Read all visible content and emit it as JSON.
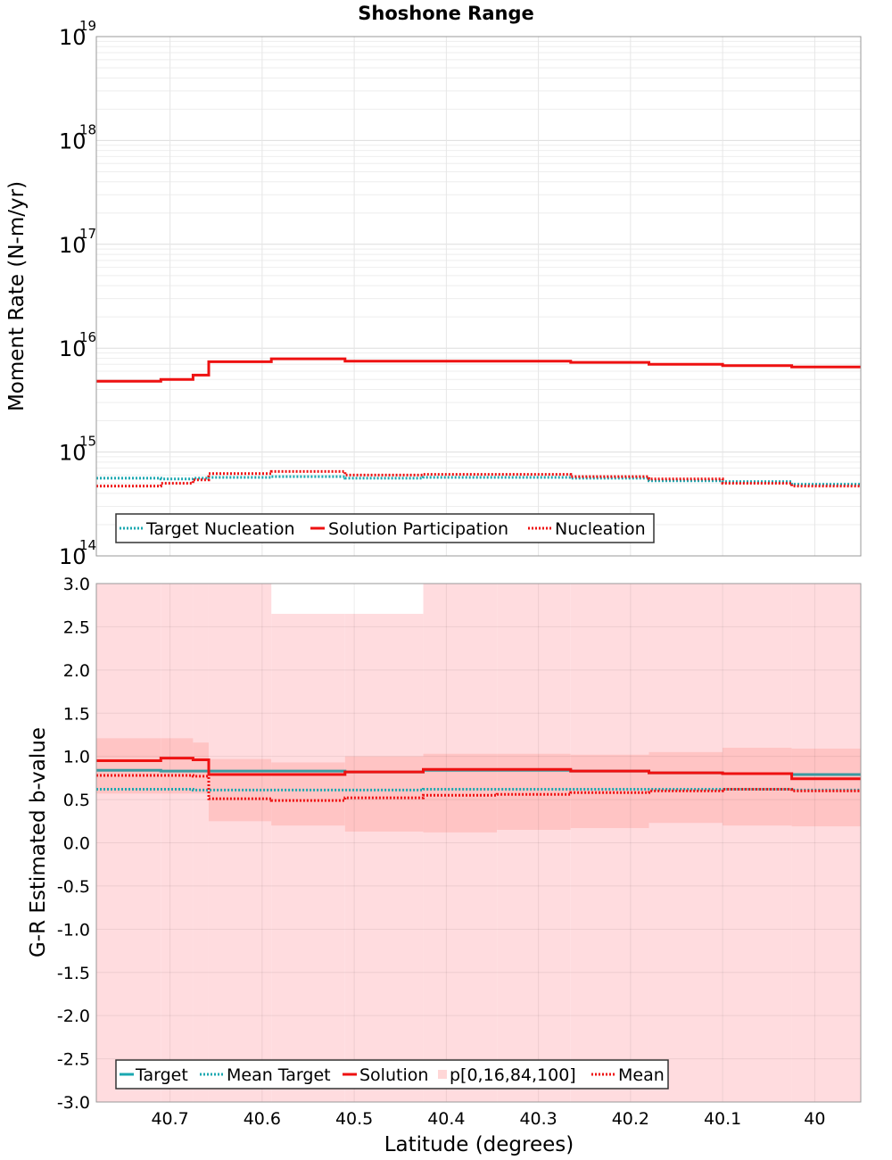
{
  "chart_data": [
    {
      "type": "line",
      "title": "Shoshone Range",
      "xlabel": "Latitude (degrees)",
      "ylabel": "Moment Rate (N-m/yr)",
      "yscale": "log",
      "ylim": [
        100000000000000.0,
        1e+19
      ],
      "xlim": [
        40.78,
        39.95
      ],
      "x_reversed": true,
      "grid": true,
      "legend_position": "bottom-left",
      "y_ticks": [
        {
          "base": "10",
          "exp": "14",
          "value": 100000000000000.0
        },
        {
          "base": "10",
          "exp": "15",
          "value": 1000000000000000.0
        },
        {
          "base": "10",
          "exp": "16",
          "value": 1e+16
        },
        {
          "base": "10",
          "exp": "17",
          "value": 1e+17
        },
        {
          "base": "10",
          "exp": "18",
          "value": 1e+18
        },
        {
          "base": "10",
          "exp": "19",
          "value": 1e+19
        }
      ],
      "bin_edges": [
        40.78,
        40.71,
        40.675,
        40.658,
        40.59,
        40.51,
        40.425,
        40.345,
        40.265,
        40.18,
        40.1,
        40.025,
        39.95
      ],
      "series": [
        {
          "name": "Target Nucleation",
          "style": "dotted",
          "color": "#1aa8b0",
          "values": [
            560000000000000.0,
            550000000000000.0,
            560000000000000.0,
            570000000000000.0,
            580000000000000.0,
            560000000000000.0,
            570000000000000.0,
            570000000000000.0,
            560000000000000.0,
            530000000000000.0,
            520000000000000.0,
            490000000000000.0
          ]
        },
        {
          "name": "Solution Participation",
          "style": "solid",
          "color": "#ee1111",
          "values": [
            4800000000000000.0,
            5000000000000000.0,
            5500000000000000.0,
            7400000000000000.0,
            7900000000000000.0,
            7500000000000000.0,
            7500000000000000.0,
            7500000000000000.0,
            7300000000000000.0,
            7000000000000000.0,
            6800000000000000.0,
            6600000000000000.0
          ]
        },
        {
          "name": "Nucleation",
          "style": "dotted",
          "color": "#ee1111",
          "values": [
            470000000000000.0,
            500000000000000.0,
            540000000000000.0,
            620000000000000.0,
            650000000000000.0,
            600000000000000.0,
            610000000000000.0,
            610000000000000.0,
            580000000000000.0,
            550000000000000.0,
            500000000000000.0,
            470000000000000.0
          ]
        }
      ]
    },
    {
      "type": "line",
      "title": "",
      "xlabel": "Latitude (degrees)",
      "ylabel": "G-R Estimated b-value",
      "ylim": [
        -3.0,
        3.0
      ],
      "xlim": [
        40.78,
        39.95
      ],
      "x_reversed": true,
      "grid": true,
      "legend_position": "bottom-left",
      "x_tick_values": [
        40.7,
        40.6,
        40.5,
        40.4,
        40.3,
        40.2,
        40.1,
        40.0
      ],
      "x_tick_labels": [
        "40.7",
        "40.6",
        "40.5",
        "40.4",
        "40.3",
        "40.2",
        "40.1",
        "40"
      ],
      "y_tick_values": [
        3.0,
        2.5,
        2.0,
        1.5,
        1.0,
        0.5,
        0.0,
        -0.5,
        -1.0,
        -1.5,
        -2.0,
        -2.5,
        -3.0
      ],
      "y_tick_labels": [
        "3.0",
        "2.5",
        "2.0",
        "1.5",
        "1.0",
        "0.5",
        "0.0",
        "-0.5",
        "-1.0",
        "-1.5",
        "-2.0",
        "-2.5",
        "-3.0"
      ],
      "bin_edges": [
        40.78,
        40.71,
        40.675,
        40.658,
        40.59,
        40.51,
        40.425,
        40.345,
        40.265,
        40.18,
        40.1,
        40.025,
        39.95
      ],
      "series": [
        {
          "name": "Target",
          "style": "solid",
          "color": "#1aa8b0",
          "values": [
            0.84,
            0.83,
            0.83,
            0.83,
            0.83,
            0.82,
            0.84,
            0.84,
            0.83,
            0.81,
            0.8,
            0.79
          ]
        },
        {
          "name": "Mean Target",
          "style": "dotted",
          "color": "#1aa8b0",
          "values": [
            0.62,
            0.62,
            0.61,
            0.61,
            0.61,
            0.61,
            0.62,
            0.62,
            0.62,
            0.62,
            0.62,
            0.61
          ]
        },
        {
          "name": "Solution",
          "style": "solid",
          "color": "#ee1111",
          "values": [
            0.95,
            0.98,
            0.96,
            0.79,
            0.79,
            0.82,
            0.85,
            0.85,
            0.83,
            0.81,
            0.8,
            0.74
          ]
        },
        {
          "name": "p[0,16,84,100]",
          "style": "band",
          "color": "#ffb3b3",
          "p0": [
            -3.0,
            -3.0,
            -3.0,
            -3.0,
            -3.0,
            -3.0,
            -3.0,
            -3.0,
            -3.0,
            -3.0,
            -3.0,
            -3.0
          ],
          "p16": [
            0.57,
            0.57,
            0.57,
            0.25,
            0.2,
            0.13,
            0.12,
            0.15,
            0.17,
            0.23,
            0.2,
            0.19
          ],
          "p84": [
            1.21,
            1.21,
            1.16,
            0.97,
            0.93,
            1.0,
            1.03,
            1.03,
            1.02,
            1.05,
            1.1,
            1.09
          ],
          "p100": [
            3.0,
            3.0,
            3.0,
            3.0,
            2.65,
            2.65,
            3.0,
            3.0,
            3.0,
            3.0,
            3.0,
            3.0
          ]
        },
        {
          "name": "Mean",
          "style": "dotted",
          "color": "#ee1111",
          "values": [
            0.78,
            0.78,
            0.77,
            0.51,
            0.49,
            0.52,
            0.55,
            0.56,
            0.58,
            0.6,
            0.62,
            0.6
          ]
        }
      ]
    }
  ]
}
